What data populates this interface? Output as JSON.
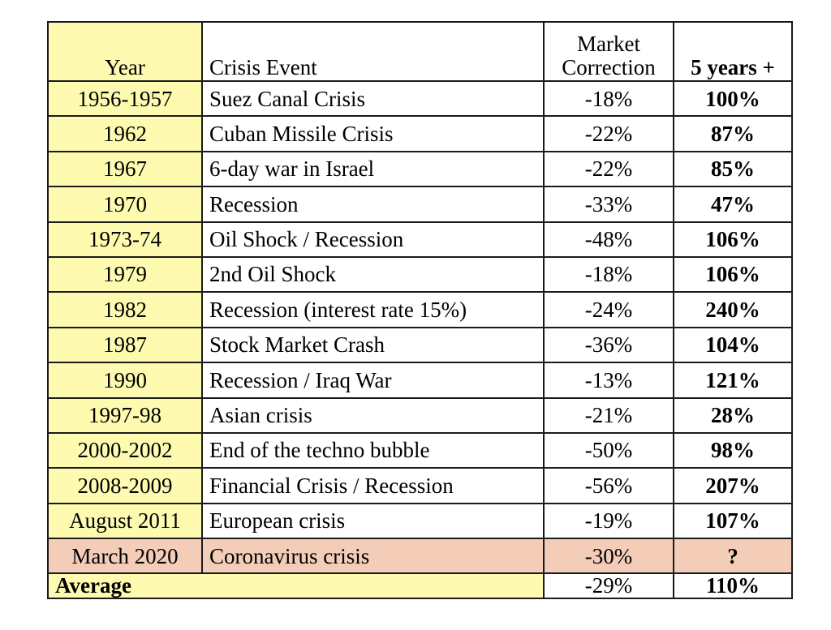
{
  "header": {
    "year": "Year",
    "event": "Crisis Event",
    "correction_line1": "Market",
    "correction_line2": "Correction",
    "plus5": "5 years +"
  },
  "rows": [
    {
      "year": "1956-1957",
      "event": "Suez Canal Crisis",
      "correction": "-18%",
      "plus5": "100%"
    },
    {
      "year": "1962",
      "event": "Cuban Missile Crisis",
      "correction": "-22%",
      "plus5": "87%"
    },
    {
      "year": "1967",
      "event": "6-day war in Israel",
      "correction": "-22%",
      "plus5": "85%"
    },
    {
      "year": "1970",
      "event": "Recession",
      "correction": "-33%",
      "plus5": "47%"
    },
    {
      "year": "1973-74",
      "event": "Oil Shock / Recession",
      "correction": "-48%",
      "plus5": "106%"
    },
    {
      "year": "1979",
      "event": "2nd Oil Shock",
      "correction": "-18%",
      "plus5": "106%"
    },
    {
      "year": "1982",
      "event": "Recession (interest rate 15%)",
      "correction": "-24%",
      "plus5": "240%"
    },
    {
      "year": "1987",
      "event": "Stock Market Crash",
      "correction": "-36%",
      "plus5": "104%"
    },
    {
      "year": "1990",
      "event": "Recession / Iraq War",
      "correction": "-13%",
      "plus5": "121%"
    },
    {
      "year": "1997-98",
      "event": "Asian crisis",
      "correction": "-21%",
      "plus5": "28%"
    },
    {
      "year": "2000-2002",
      "event": "End of the techno bubble",
      "correction": "-50%",
      "plus5": "98%"
    },
    {
      "year": "2008-2009",
      "event": "Financial Crisis / Recession",
      "correction": "-56%",
      "plus5": "207%"
    },
    {
      "year": "August 2011",
      "event": "European crisis",
      "correction": "-19%",
      "plus5": "107%"
    },
    {
      "year": "March 2020",
      "event": "Coronavirus crisis",
      "correction": "-30%",
      "plus5": "?",
      "highlight": true
    }
  ],
  "average": {
    "label": "Average",
    "correction": "-29%",
    "plus5": "110%"
  },
  "colors": {
    "header_bg": "#fefbb0",
    "highlight_bg": "#f3cdb7",
    "border": "#1a1a1a"
  }
}
